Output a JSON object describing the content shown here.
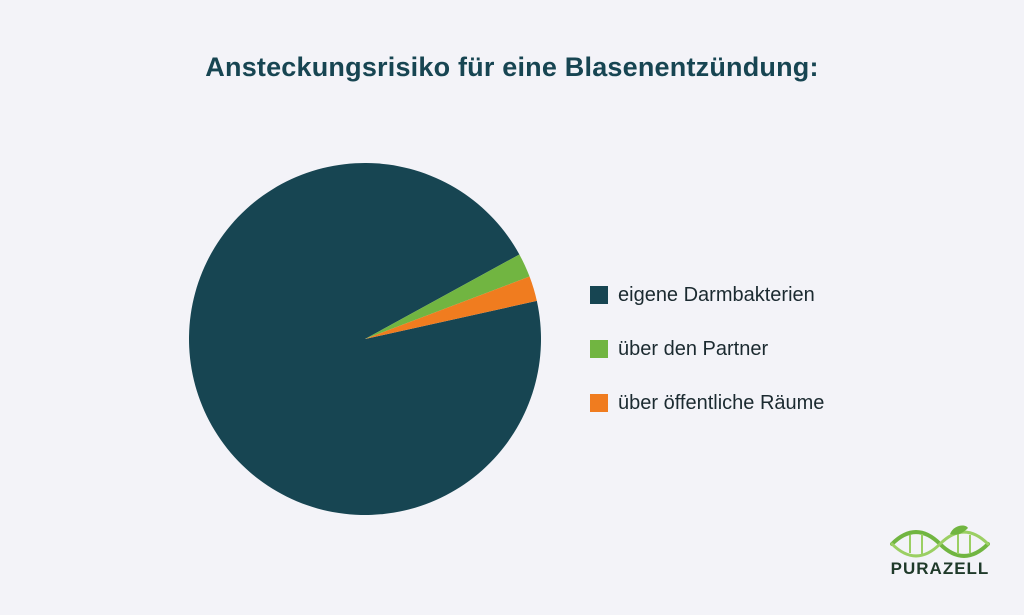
{
  "chart_data": {
    "type": "pie",
    "title": "Ansteckungsrisiko für eine Blasenentzündung:",
    "legend_position": "right",
    "slices": [
      {
        "label": "eigene Darmbakterien",
        "value": 95.5,
        "color": "#174552"
      },
      {
        "label": "über den Partner",
        "value": 2.2,
        "color": "#71b541"
      },
      {
        "label": "über öffentliche Räume",
        "value": 2.3,
        "color": "#f07c1f"
      }
    ]
  },
  "legend": {
    "items": [
      {
        "label": "eigene Darmbakterien",
        "color": "#174552"
      },
      {
        "label": "über den Partner",
        "color": "#71b541"
      },
      {
        "label": "über öffentliche Räume",
        "color": "#f07c1f"
      }
    ]
  },
  "logo": {
    "text": "PURAZELL",
    "icon": "dna-leaf-icon"
  }
}
